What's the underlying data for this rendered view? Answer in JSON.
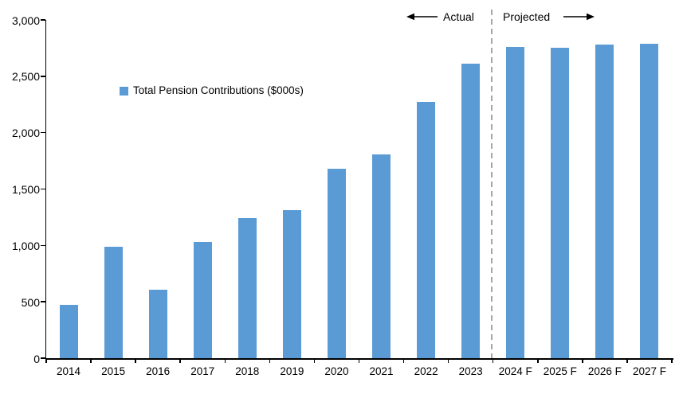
{
  "chart_data": {
    "type": "bar",
    "title": "",
    "legend_label": "Total Pension Contributions ($000s)",
    "categories": [
      "2014",
      "2015",
      "2016",
      "2017",
      "2018",
      "2019",
      "2020",
      "2021",
      "2022",
      "2023",
      "2024 F",
      "2025 F",
      "2026 F",
      "2027 F"
    ],
    "values": [
      470,
      990,
      610,
      1030,
      1240,
      1310,
      1680,
      1810,
      2270,
      2610,
      2760,
      2750,
      2780,
      2790
    ],
    "xlabel": "",
    "ylabel": "",
    "ylim": [
      0,
      3000
    ],
    "ytick_values": [
      0,
      500,
      1000,
      1500,
      2000,
      2500,
      3000
    ],
    "ytick_labels": [
      "0",
      "500",
      "1,000",
      "1,500",
      "2,000",
      "2,500",
      "3,000"
    ],
    "grid": "off",
    "legend_position": "upper-left-inside",
    "bar_color": "#5B9BD5",
    "divider_color": "#A6A6A6",
    "divider_after_category": "2023",
    "annotations": {
      "actual": "Actual",
      "projected": "Projected"
    }
  }
}
